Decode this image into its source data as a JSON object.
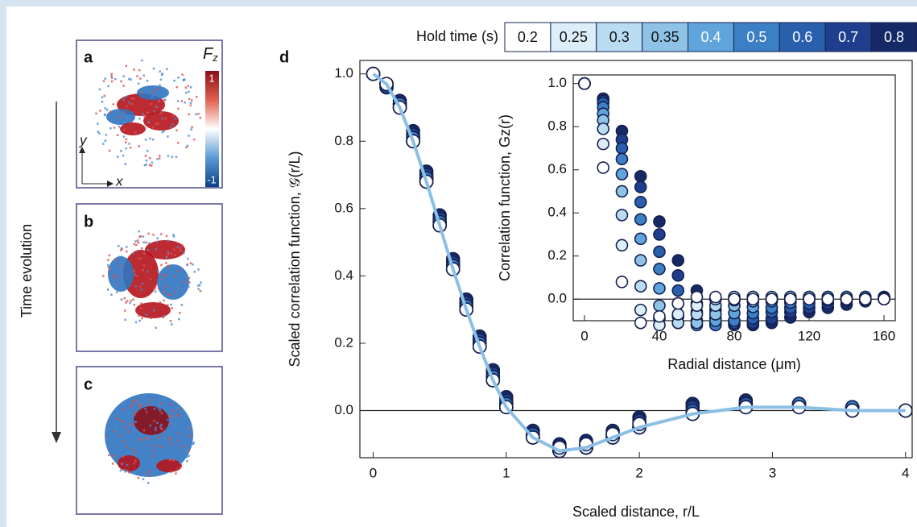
{
  "figure": {
    "time_label": "Time evolution",
    "panels": [
      {
        "label": "a"
      },
      {
        "label": "b"
      },
      {
        "label": "c"
      }
    ],
    "colorbar": {
      "label": "F",
      "label_sub": "z",
      "max_label": "1",
      "min_label": "-1"
    },
    "axes_arrows": {
      "x": "x",
      "y": "y"
    }
  },
  "chart_data": [
    {
      "type": "scatter",
      "panel_label": "d",
      "legend_title": "Hold time (s)",
      "x_label": "Scaled distance, r/L",
      "y_label": "Scaled correlation function, 𝒢(r/L)",
      "xlim": [
        -0.1,
        4.05
      ],
      "ylim": [
        -0.14,
        1.04
      ],
      "xticks": [
        0,
        1,
        2,
        3,
        4
      ],
      "yticks": [
        {
          "value": 0,
          "label": "0.0"
        },
        0.2,
        0.4,
        0.6,
        0.8,
        {
          "value": 1,
          "label": "1.0"
        }
      ],
      "x": [
        0,
        0.1,
        0.2,
        0.3,
        0.4,
        0.5,
        0.6,
        0.7,
        0.8,
        0.9,
        1.0,
        1.2,
        1.4,
        1.6,
        1.8,
        2.0,
        2.4,
        2.8,
        3.2,
        3.6,
        4.0
      ],
      "series": [
        {
          "name": "0.2",
          "color": "#ffffff",
          "values": [
            1.0,
            0.97,
            0.9,
            0.8,
            0.68,
            0.55,
            0.42,
            0.3,
            0.19,
            0.09,
            0.01,
            -0.08,
            -0.11,
            -0.1,
            -0.07,
            -0.04,
            -0.01,
            0.01,
            0.01,
            0.0,
            0.0
          ]
        },
        {
          "name": "0.25",
          "color": "#dceefa",
          "values": [
            1.0,
            0.97,
            0.9,
            0.8,
            0.68,
            0.55,
            0.42,
            0.3,
            0.19,
            0.09,
            0.01,
            -0.08,
            -0.12,
            -0.11,
            -0.08,
            -0.05,
            -0.01,
            0.01,
            0.01,
            0.0,
            0.0
          ]
        },
        {
          "name": "0.3",
          "color": "#b9dcf2",
          "values": [
            1.0,
            0.97,
            0.9,
            0.8,
            0.68,
            0.55,
            0.42,
            0.3,
            0.19,
            0.09,
            0.01,
            -0.08,
            -0.12,
            -0.11,
            -0.08,
            -0.05,
            -0.01,
            0.01,
            0.01,
            0.0,
            0.0
          ]
        },
        {
          "name": "0.35",
          "color": "#8fc3e6",
          "values": [
            1.0,
            0.97,
            0.9,
            0.8,
            0.68,
            0.55,
            0.42,
            0.3,
            0.19,
            0.09,
            0.01,
            -0.08,
            -0.12,
            -0.11,
            -0.08,
            -0.05,
            -0.01,
            0.01,
            0.01,
            0.0,
            0.0
          ]
        },
        {
          "name": "0.4",
          "color": "#5fa5dc",
          "values": [
            1.0,
            0.97,
            0.9,
            0.8,
            0.68,
            0.55,
            0.42,
            0.3,
            0.19,
            0.09,
            0.01,
            -0.08,
            -0.12,
            -0.11,
            -0.08,
            -0.05,
            -0.01,
            0.01,
            0.01,
            0.0,
            0.0
          ]
        },
        {
          "name": "0.5",
          "color": "#3b7fc4",
          "values": [
            1.0,
            0.97,
            0.91,
            0.81,
            0.69,
            0.56,
            0.43,
            0.31,
            0.2,
            0.1,
            0.02,
            -0.08,
            -0.12,
            -0.11,
            -0.08,
            -0.05,
            -0.01,
            0.01,
            0.02,
            0.01,
            0.0
          ]
        },
        {
          "name": "0.6",
          "color": "#2a5fae",
          "values": [
            1.0,
            0.97,
            0.91,
            0.81,
            0.69,
            0.56,
            0.43,
            0.31,
            0.2,
            0.1,
            0.02,
            -0.07,
            -0.11,
            -0.1,
            -0.07,
            -0.04,
            0.0,
            0.02,
            0.02,
            0.01,
            0.0
          ]
        },
        {
          "name": "0.7",
          "color": "#1f3f8e",
          "values": [
            1.0,
            0.96,
            0.91,
            0.82,
            0.7,
            0.57,
            0.44,
            0.32,
            0.21,
            0.11,
            0.03,
            -0.07,
            -0.11,
            -0.1,
            -0.07,
            -0.03,
            0.01,
            0.02,
            0.02,
            0.01,
            0.0
          ]
        },
        {
          "name": "0.8",
          "color": "#142966",
          "values": [
            1.0,
            0.96,
            0.92,
            0.83,
            0.71,
            0.58,
            0.45,
            0.33,
            0.22,
            0.12,
            0.04,
            -0.06,
            -0.1,
            -0.09,
            -0.06,
            -0.02,
            0.02,
            0.03,
            0.02,
            0.01,
            0.0
          ]
        }
      ],
      "fit": {
        "color": "#8cbfe6",
        "values": [
          1.0,
          0.97,
          0.9,
          0.8,
          0.68,
          0.55,
          0.42,
          0.3,
          0.19,
          0.09,
          0.01,
          -0.08,
          -0.12,
          -0.11,
          -0.08,
          -0.05,
          -0.01,
          0.01,
          0.01,
          0.0,
          0.0
        ]
      }
    },
    {
      "type": "scatter",
      "x_label": "Radial distance (μm)",
      "y_label": "Correlation function, Gz(r)",
      "xlim": [
        -6,
        166
      ],
      "ylim": [
        -0.1,
        1.04
      ],
      "xticks": [
        0,
        40,
        80,
        120,
        160
      ],
      "yticks": [
        {
          "value": 0,
          "label": "0.0"
        },
        0.2,
        0.4,
        0.6,
        0.8,
        {
          "value": 1,
          "label": "1.0"
        }
      ],
      "x": [
        0,
        10,
        20,
        30,
        40,
        50,
        60,
        70,
        80,
        90,
        100,
        110,
        120,
        130,
        140,
        150,
        160
      ],
      "series": [
        {
          "name": "0.2",
          "color": "#ffffff",
          "values": [
            1.0,
            0.61,
            0.08,
            -0.11,
            -0.08,
            -0.02,
            0.01,
            0.01,
            0.0,
            0.0,
            0.0,
            0.0,
            0.0,
            0.0,
            0.0,
            0.0,
            0.0
          ]
        },
        {
          "name": "0.25",
          "color": "#dceefa",
          "values": [
            1.0,
            0.72,
            0.25,
            -0.05,
            -0.12,
            -0.07,
            -0.03,
            0.0,
            0.01,
            0.01,
            0.0,
            0.0,
            0.0,
            0.0,
            0.0,
            0.0,
            0.0
          ]
        },
        {
          "name": "0.3",
          "color": "#b9dcf2",
          "values": [
            1.0,
            0.79,
            0.39,
            0.06,
            -0.09,
            -0.11,
            -0.07,
            -0.03,
            -0.005,
            0.01,
            0.01,
            0.01,
            0.0,
            0.0,
            0.0,
            0.0,
            0.0
          ]
        },
        {
          "name": "0.35",
          "color": "#8fc3e6",
          "values": [
            1.0,
            0.83,
            0.5,
            0.18,
            -0.03,
            -0.11,
            -0.11,
            -0.07,
            -0.03,
            -0.01,
            0.005,
            0.01,
            0.01,
            0.0,
            0.0,
            0.0,
            0.0
          ]
        },
        {
          "name": "0.4",
          "color": "#5fa5dc",
          "values": [
            1.0,
            0.86,
            0.58,
            0.28,
            0.05,
            -0.08,
            -0.12,
            -0.1,
            -0.065,
            -0.036,
            -0.01,
            0.0,
            0.01,
            0.01,
            0.01,
            0.0,
            0.0
          ]
        },
        {
          "name": "0.5",
          "color": "#3b7fc4",
          "values": [
            1.0,
            0.89,
            0.65,
            0.37,
            0.14,
            -0.02,
            -0.1,
            -0.12,
            -0.1,
            -0.065,
            -0.04,
            -0.016,
            0.0,
            0.01,
            0.01,
            0.01,
            0.005
          ]
        },
        {
          "name": "0.6",
          "color": "#2a5fae",
          "values": [
            1.0,
            0.91,
            0.7,
            0.45,
            0.22,
            0.04,
            -0.06,
            -0.11,
            -0.11,
            -0.09,
            -0.06,
            -0.04,
            -0.02,
            -0.005,
            0.004,
            0.01,
            0.01
          ]
        },
        {
          "name": "0.7",
          "color": "#1f3f8e",
          "values": [
            1.0,
            0.92,
            0.74,
            0.52,
            0.3,
            0.11,
            -0.02,
            -0.09,
            -0.12,
            -0.11,
            -0.09,
            -0.06,
            -0.04,
            -0.02,
            -0.005,
            0.003,
            0.01
          ]
        },
        {
          "name": "0.8",
          "color": "#142966",
          "values": [
            1.0,
            0.93,
            0.78,
            0.57,
            0.36,
            0.18,
            0.04,
            -0.05,
            -0.1,
            -0.12,
            -0.11,
            -0.085,
            -0.06,
            -0.04,
            -0.025,
            -0.01,
            0.0
          ]
        }
      ]
    }
  ]
}
